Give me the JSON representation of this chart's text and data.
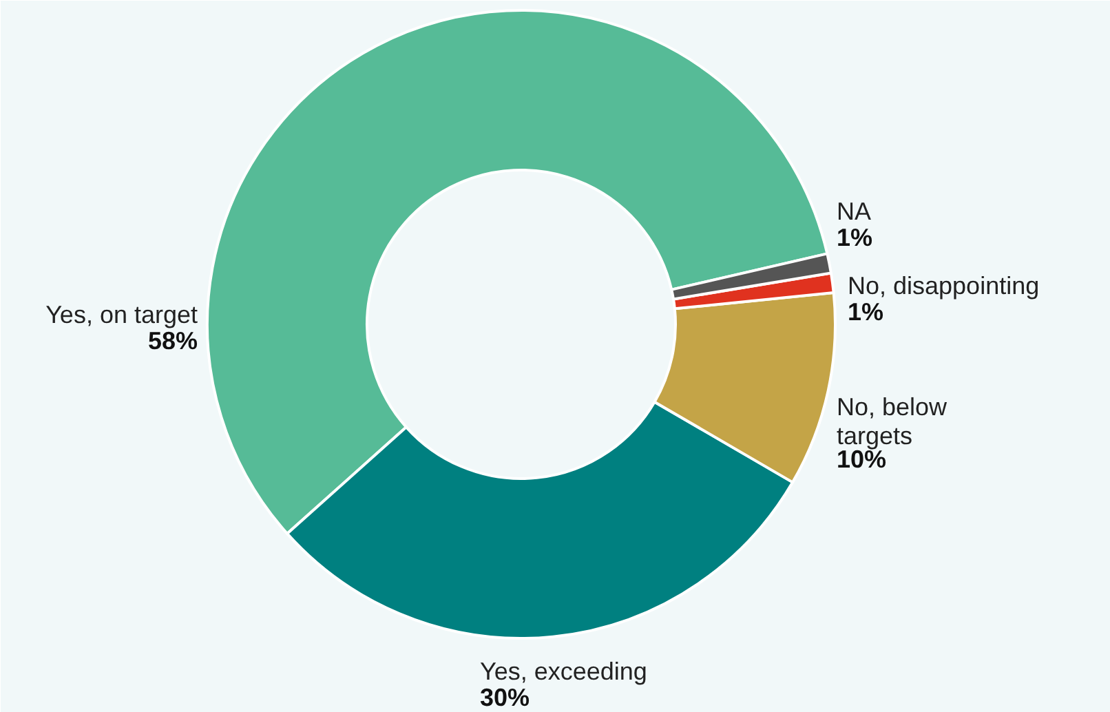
{
  "chart_data": {
    "type": "donut",
    "categories": [
      "Yes, on target",
      "Yes, exceeding",
      "No, below\ntargets",
      "No, disappointing",
      "NA"
    ],
    "values": [
      58,
      30,
      10,
      1,
      1
    ],
    "value_labels": [
      "58%",
      "30%",
      "10%",
      "1%",
      "1%"
    ],
    "colors": [
      "#56bb97",
      "#008080",
      "#c4a447",
      "#e0321f",
      "#555555"
    ]
  }
}
